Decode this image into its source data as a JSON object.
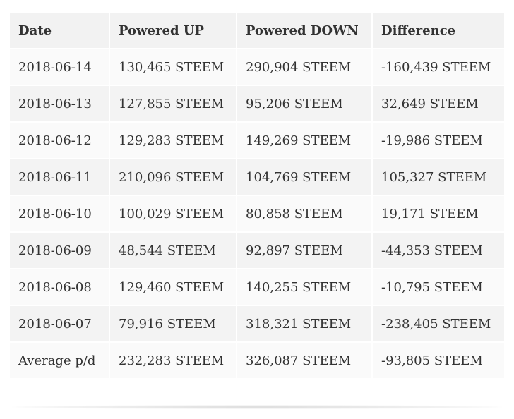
{
  "table": {
    "headers": [
      "Date",
      "Powered UP",
      "Powered DOWN",
      "Difference"
    ],
    "rows": [
      [
        "2018-06-14",
        "130,465 STEEM",
        "290,904 STEEM",
        "-160,439 STEEM"
      ],
      [
        "2018-06-13",
        "127,855 STEEM",
        "95,206 STEEM",
        "32,649 STEEM"
      ],
      [
        "2018-06-12",
        "129,283 STEEM",
        "149,269 STEEM",
        "-19,986 STEEM"
      ],
      [
        "2018-06-11",
        "210,096 STEEM",
        "104,769 STEEM",
        "105,327 STEEM"
      ],
      [
        "2018-06-10",
        "100,029 STEEM",
        "80,858 STEEM",
        "19,171 STEEM"
      ],
      [
        "2018-06-09",
        "48,544 STEEM",
        "92,897 STEEM",
        "-44,353 STEEM"
      ],
      [
        "2018-06-08",
        "129,460 STEEM",
        "140,255 STEEM",
        "-10,795 STEEM"
      ],
      [
        "2018-06-07",
        "79,916 STEEM",
        "318,321 STEEM",
        "-238,405 STEEM"
      ],
      [
        "Average p/d",
        "232,283 STEEM",
        "326,087 STEEM",
        "-93,805 STEEM"
      ]
    ]
  },
  "colors": {
    "header_bg": "#f2f2f2",
    "row_odd_bg": "#fafafa",
    "row_even_bg": "#f3f3f3",
    "text": "#333333"
  }
}
